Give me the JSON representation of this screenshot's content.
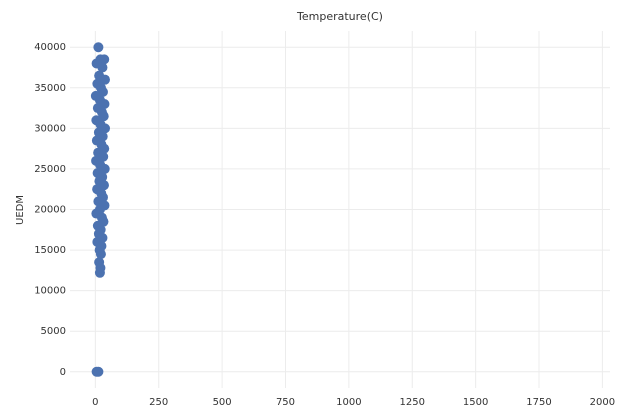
{
  "chart_data": {
    "type": "scatter",
    "title": "Temperature(C)",
    "y_label": "UEDM",
    "x": [
      12,
      20,
      35,
      5,
      28,
      15,
      38,
      8,
      22,
      30,
      2,
      18,
      36,
      10,
      26,
      33,
      4,
      20,
      38,
      14,
      29,
      6,
      24,
      35,
      11,
      31,
      3,
      19,
      37,
      9,
      27,
      16,
      34,
      7,
      23,
      30,
      12,
      36,
      18,
      4,
      26,
      32,
      10,
      21,
      14,
      28,
      8,
      24,
      17,
      22,
      15,
      20,
      18,
      5,
      12
    ],
    "y": [
      40000,
      38500,
      38500,
      38000,
      37500,
      36500,
      36000,
      35500,
      35000,
      34500,
      34000,
      33500,
      33000,
      32500,
      32000,
      31500,
      31000,
      30500,
      30000,
      29500,
      29000,
      28500,
      28000,
      27500,
      27000,
      26500,
      26000,
      25500,
      25000,
      24500,
      24000,
      23500,
      23000,
      22500,
      22000,
      21500,
      21000,
      20500,
      20000,
      19500,
      19000,
      18500,
      18000,
      17500,
      17000,
      16500,
      16000,
      15500,
      15000,
      14500,
      13500,
      12800,
      12200,
      0,
      0
    ],
    "color": "#4c72b0",
    "xlim": [
      -100,
      2030
    ],
    "xticks": [
      0,
      250,
      500,
      750,
      1000,
      1250,
      1500,
      1750,
      2000
    ],
    "ylim": [
      -2000,
      42000
    ],
    "yticks": [
      0,
      5000,
      10000,
      15000,
      20000,
      25000,
      30000,
      35000,
      40000
    ],
    "grid": true
  }
}
